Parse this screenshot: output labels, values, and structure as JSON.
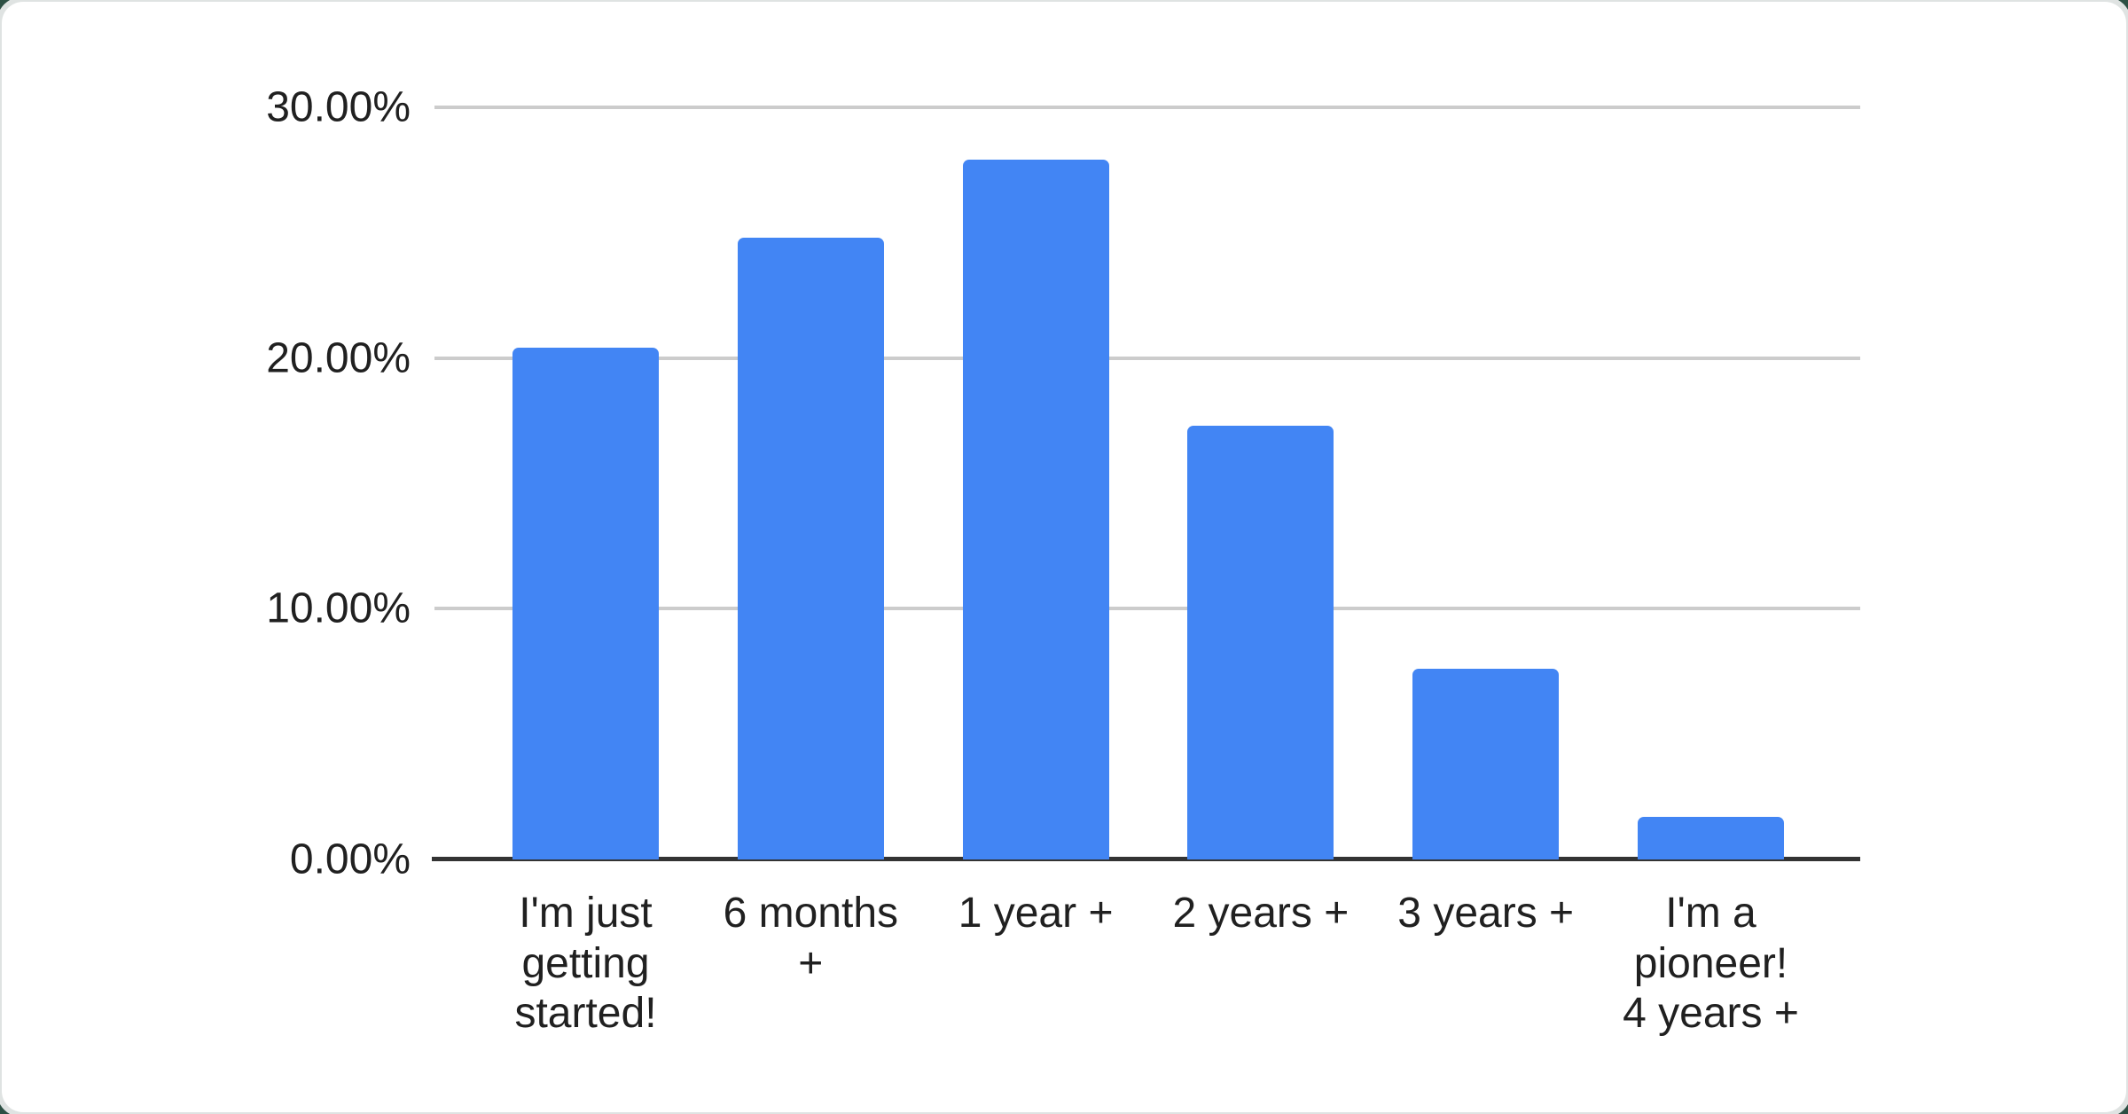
{
  "chart_data": {
    "type": "bar",
    "title": "",
    "xlabel": "",
    "ylabel": "",
    "categories": [
      "I'm just getting started!",
      "6 months +",
      "1 year +",
      "2 years +",
      "3 years +",
      "I'm a pioneer! 4 years +"
    ],
    "values": [
      20.4,
      24.8,
      27.9,
      17.3,
      7.6,
      1.7
    ],
    "unit": "%",
    "ylim": [
      0,
      30
    ],
    "grid": true,
    "legend_position": "none",
    "y_axis_ticks": [
      {
        "label": "0.00%",
        "value": 0
      },
      {
        "label": "10.00%",
        "value": 10
      },
      {
        "label": "20.00%",
        "value": 20
      },
      {
        "label": "30.00%",
        "value": 30
      }
    ]
  },
  "display": {
    "category_display_lines": [
      "I'm just\ngetting\nstarted!",
      "6 months\n+",
      "1 year +",
      "2 years +",
      "3 years +",
      "I'm a\npioneer!\n4 years +"
    ]
  },
  "colors": {
    "bar": "#4285f4",
    "gridline": "#cccccc",
    "axis_line": "#333333",
    "label_text": "#202020",
    "card_background": "#ffffff",
    "card_halo": "#dfe3e2",
    "page_background": "#2c4f43"
  }
}
